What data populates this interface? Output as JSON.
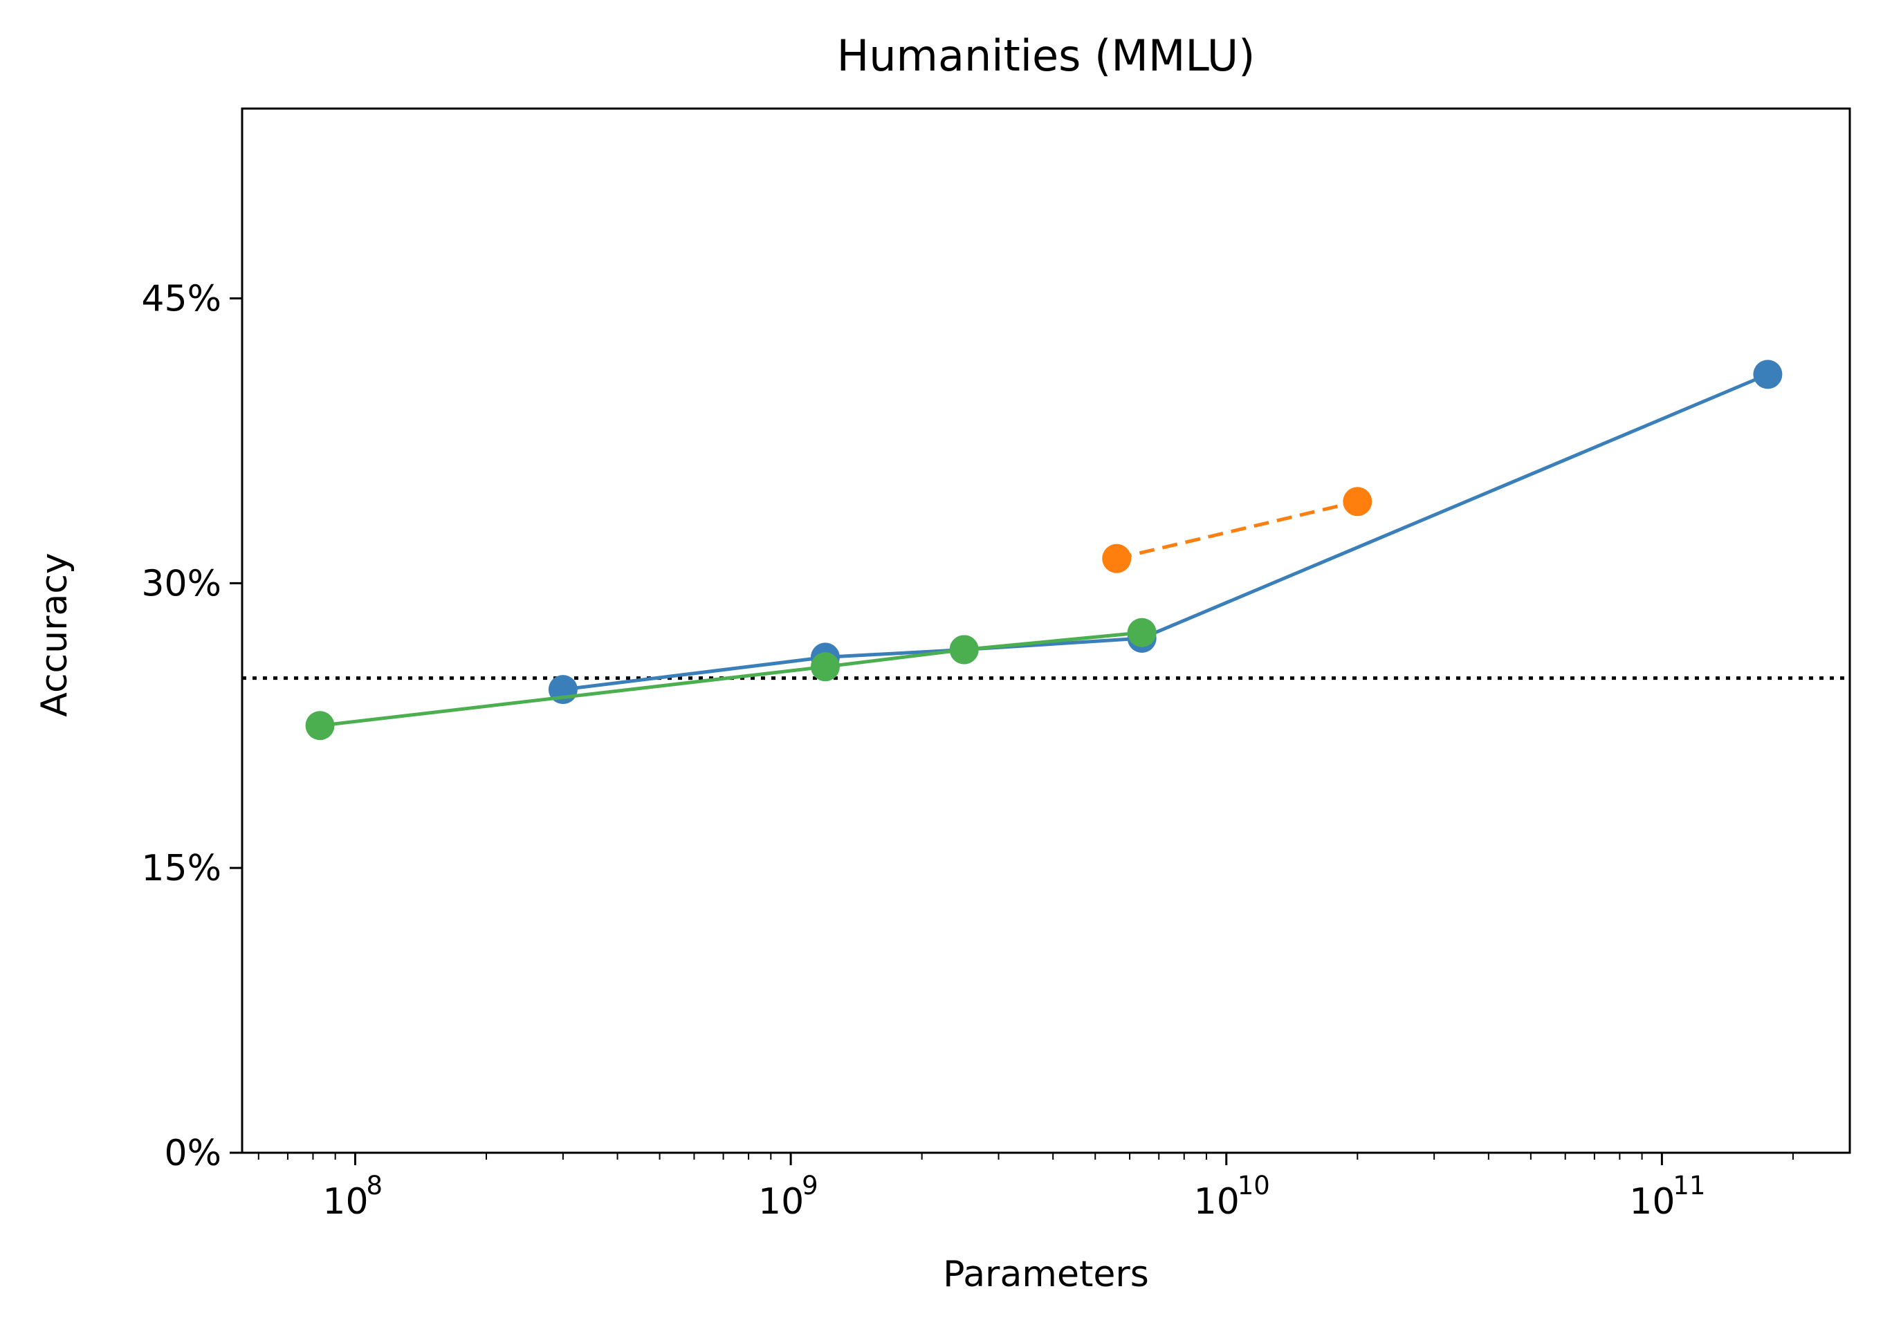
{
  "chart_data": {
    "type": "line",
    "title": "Humanities (MMLU)",
    "xlabel": "Parameters",
    "ylabel": "Accuracy",
    "x_scale": "log",
    "xlim": [
      55000000,
      270000000000
    ],
    "ylim": [
      0,
      55
    ],
    "x_ticks": [
      {
        "value": 100000000,
        "base": "10",
        "exp": "8"
      },
      {
        "value": 1000000000,
        "base": "10",
        "exp": "9"
      },
      {
        "value": 10000000000,
        "base": "10",
        "exp": "10"
      },
      {
        "value": 100000000000,
        "base": "10",
        "exp": "11"
      }
    ],
    "y_ticks": [
      {
        "value": 0,
        "label": "0%"
      },
      {
        "value": 15,
        "label": "15%"
      },
      {
        "value": 30,
        "label": "30%"
      },
      {
        "value": 45,
        "label": "45%"
      }
    ],
    "reference_line": {
      "y": 25,
      "style": "dotted",
      "color": "#000000"
    },
    "series": [
      {
        "color": "#3a7fb9",
        "dash": "solid",
        "points": [
          {
            "x": 300000000,
            "y": 24.4
          },
          {
            "x": 1200000000,
            "y": 26.1
          },
          {
            "x": 2500000000,
            "y": 26.5
          },
          {
            "x": 6400000000,
            "y": 27.1
          },
          {
            "x": 175000000000,
            "y": 41.0
          }
        ]
      },
      {
        "color": "#ff7f0e",
        "dash": "dashed",
        "points": [
          {
            "x": 5600000000,
            "y": 31.3
          },
          {
            "x": 20000000000,
            "y": 34.3
          }
        ]
      },
      {
        "color": "#4caf4f",
        "dash": "solid",
        "points": [
          {
            "x": 83000000,
            "y": 22.5
          },
          {
            "x": 1200000000,
            "y": 25.6
          },
          {
            "x": 2500000000,
            "y": 26.5
          },
          {
            "x": 6400000000,
            "y": 27.4
          }
        ]
      }
    ]
  }
}
